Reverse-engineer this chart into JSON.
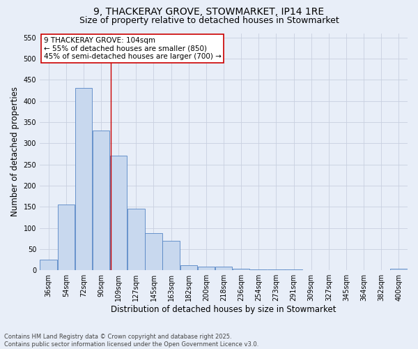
{
  "title_line1": "9, THACKERAY GROVE, STOWMARKET, IP14 1RE",
  "title_line2": "Size of property relative to detached houses in Stowmarket",
  "xlabel": "Distribution of detached houses by size in Stowmarket",
  "ylabel": "Number of detached properties",
  "categories": [
    "36sqm",
    "54sqm",
    "72sqm",
    "90sqm",
    "109sqm",
    "127sqm",
    "145sqm",
    "163sqm",
    "182sqm",
    "200sqm",
    "218sqm",
    "236sqm",
    "254sqm",
    "273sqm",
    "291sqm",
    "309sqm",
    "327sqm",
    "345sqm",
    "364sqm",
    "382sqm",
    "400sqm"
  ],
  "values": [
    25,
    155,
    430,
    330,
    270,
    145,
    87,
    70,
    12,
    9,
    9,
    4,
    2,
    2,
    2,
    1,
    0,
    0,
    0,
    0,
    3
  ],
  "bar_color": "#c8d8ee",
  "bar_edge_color": "#5585c5",
  "grid_color": "#c8d0e0",
  "background_color": "#e8eef8",
  "vline_x": 3.55,
  "vline_color": "#cc0000",
  "annotation_text": "9 THACKERAY GROVE: 104sqm\n← 55% of detached houses are smaller (850)\n45% of semi-detached houses are larger (700) →",
  "annotation_box_color": "#ffffff",
  "annotation_box_edge": "#cc0000",
  "ylim": [
    0,
    560
  ],
  "yticks": [
    0,
    50,
    100,
    150,
    200,
    250,
    300,
    350,
    400,
    450,
    500,
    550
  ],
  "footer_line1": "Contains HM Land Registry data © Crown copyright and database right 2025.",
  "footer_line2": "Contains public sector information licensed under the Open Government Licence v3.0.",
  "title_fontsize": 10,
  "subtitle_fontsize": 9,
  "axis_label_fontsize": 8.5,
  "tick_fontsize": 7,
  "annotation_fontsize": 7.5,
  "footer_fontsize": 6
}
